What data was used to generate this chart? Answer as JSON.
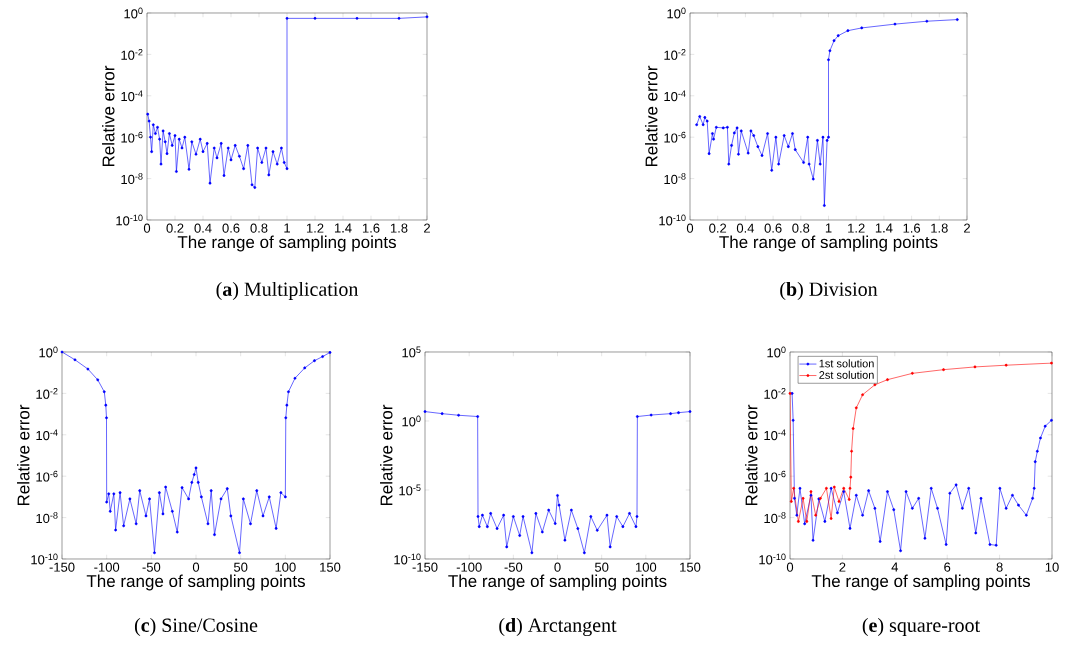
{
  "chart_data": [
    {
      "type": "line",
      "title": "(**a**) Multiplication",
      "xlabel": "The range of sampling points",
      "ylabel": "Relative error",
      "log": "y",
      "marker": "circle",
      "line_style": "solid",
      "grid": false,
      "xlim": [
        0,
        2
      ],
      "xticks": [
        0,
        0.2,
        0.4,
        0.6,
        0.8,
        1,
        1.2,
        1.4,
        1.6,
        1.8,
        2
      ],
      "ylim": [
        1e-10,
        1
      ],
      "yticks": [
        {
          "value": 1e-10,
          "label": "10$^{-10}$"
        },
        {
          "value": 1e-08,
          "label": "10$^{-8}$"
        },
        {
          "value": 1e-06,
          "label": "10$^{-6}$"
        },
        {
          "value": 0.0001,
          "label": "10$^{-4}$"
        },
        {
          "value": 0.01,
          "label": "10$^{-2}$"
        },
        {
          "value": 1,
          "label": "10$^{0}$"
        }
      ],
      "series": [
        {
          "color": "#0000ff",
          "x": [
            0.005,
            0.015,
            0.025,
            0.033,
            0.045,
            0.06,
            0.075,
            0.09,
            0.1,
            0.115,
            0.13,
            0.143,
            0.16,
            0.18,
            0.2,
            0.21,
            0.23,
            0.25,
            0.27,
            0.3,
            0.32,
            0.35,
            0.38,
            0.4,
            0.43,
            0.45,
            0.48,
            0.5,
            0.53,
            0.55,
            0.58,
            0.6,
            0.63,
            0.66,
            0.69,
            0.72,
            0.75,
            0.77,
            0.79,
            0.82,
            0.85,
            0.87,
            0.9,
            0.93,
            0.96,
            0.98,
            1.0,
            1.0,
            1.2,
            1.5,
            1.8,
            2.0
          ],
          "values": [
            1.3e-05,
            6e-06,
            1e-06,
            2e-07,
            4e-06,
            1.5e-06,
            3e-06,
            8e-07,
            5e-08,
            2e-06,
            6e-07,
            1.6e-07,
            1.5e-06,
            4e-07,
            1.2e-06,
            2.2e-08,
            8e-07,
            3e-07,
            1e-06,
            2.8e-08,
            6e-07,
            1.5e-07,
            8e-07,
            2e-07,
            5e-07,
            6e-09,
            3e-07,
            1e-07,
            5e-07,
            1.4e-08,
            3e-07,
            8e-08,
            4e-07,
            1.2e-07,
            3e-08,
            4e-07,
            5e-09,
            3.7e-09,
            3e-07,
            6e-08,
            3e-07,
            1.5e-08,
            2e-07,
            5e-08,
            3e-07,
            6e-08,
            3e-08,
            0.55,
            0.55,
            0.55,
            0.55,
            0.65
          ]
        }
      ]
    },
    {
      "type": "line",
      "title": "(**b**) Division",
      "xlabel": "The range of sampling points",
      "ylabel": "Relative error",
      "log": "y",
      "marker": "circle",
      "line_style": "solid",
      "grid": false,
      "xlim": [
        0,
        2
      ],
      "xticks": [
        0,
        0.2,
        0.4,
        0.6,
        0.8,
        1,
        1.2,
        1.4,
        1.6,
        1.8,
        2
      ],
      "ylim": [
        1e-10,
        1
      ],
      "yticks": [
        {
          "value": 1e-10,
          "label": "10$^{-10}$"
        },
        {
          "value": 1e-08,
          "label": "10$^{-8}$"
        },
        {
          "value": 1e-06,
          "label": "10$^{-6}$"
        },
        {
          "value": 0.0001,
          "label": "10$^{-4}$"
        },
        {
          "value": 0.01,
          "label": "10$^{-2}$"
        },
        {
          "value": 1,
          "label": "10$^{0}$"
        }
      ],
      "series": [
        {
          "color": "#0000ff",
          "x": [
            0.048,
            0.07,
            0.095,
            0.107,
            0.124,
            0.138,
            0.162,
            0.17,
            0.19,
            0.24,
            0.27,
            0.28,
            0.3,
            0.32,
            0.34,
            0.35,
            0.37,
            0.42,
            0.44,
            0.46,
            0.49,
            0.52,
            0.56,
            0.59,
            0.62,
            0.64,
            0.68,
            0.71,
            0.74,
            0.76,
            0.82,
            0.85,
            0.86,
            0.89,
            0.92,
            0.94,
            0.96,
            0.97,
            0.99,
            1.0,
            1.0,
            1.01,
            1.04,
            1.07,
            1.14,
            1.24,
            1.48,
            1.71,
            1.93
          ],
          "values": [
            4e-06,
            1e-05,
            4e-06,
            9e-06,
            6e-06,
            1.6e-07,
            1.5e-06,
            8e-07,
            3e-06,
            2.8e-06,
            3e-06,
            5e-08,
            4e-07,
            1.6e-06,
            2.8e-06,
            1.5e-07,
            2e-06,
            1.7e-07,
            2e-06,
            1.2e-06,
            3.5e-07,
            1.3e-07,
            1.5e-06,
            2.5e-08,
            1e-06,
            5e-08,
            1.2e-06,
            3.5e-07,
            1.5e-06,
            2.5e-07,
            6e-08,
            1e-06,
            5e-08,
            9.5e-09,
            7e-07,
            5e-08,
            1e-06,
            5e-10,
            7e-07,
            1e-06,
            0.0055,
            0.015,
            0.046,
            0.08,
            0.14,
            0.19,
            0.29,
            0.4,
            0.48
          ]
        }
      ]
    },
    {
      "type": "line",
      "title": "(**c**) Sine/Cosine",
      "xlabel": "The range of sampling points",
      "ylabel": "Relative error",
      "log": "y",
      "marker": "circle",
      "line_style": "solid",
      "grid": false,
      "xlim": [
        -150,
        150
      ],
      "xticks": [
        -150,
        -100,
        -50,
        0,
        50,
        100,
        150
      ],
      "ylim": [
        1e-10,
        1
      ],
      "yticks": [
        {
          "value": 1e-10,
          "label": "10$^{-10}$"
        },
        {
          "value": 1e-08,
          "label": "10$^{-8}$"
        },
        {
          "value": 1e-06,
          "label": "10$^{-6}$"
        },
        {
          "value": 0.0001,
          "label": "10$^{-4}$"
        },
        {
          "value": 0.01,
          "label": "10$^{-2}$"
        },
        {
          "value": 1,
          "label": "10$^{0}$"
        }
      ],
      "series": [
        {
          "color": "#0000ff",
          "x": [
            -150,
            -135.5,
            -121,
            -110,
            -102.7,
            -101,
            -100.2,
            -100,
            -97.7,
            -96,
            -92,
            -90,
            -85,
            -81,
            -74,
            -67,
            -63,
            -56,
            -52,
            -46.5,
            -41,
            -37,
            -34,
            -26.5,
            -21,
            -15.6,
            -8.3,
            -4.7,
            -2,
            0,
            2.5,
            6,
            13.4,
            17,
            20.7,
            28,
            35,
            39,
            48.7,
            53,
            61,
            68,
            75,
            82,
            89.7,
            95,
            100,
            100.5,
            101.7,
            103.5,
            110.8,
            121.7,
            132.6,
            141.7,
            150
          ],
          "values": [
            1,
            0.42,
            0.15,
            0.045,
            0.012,
            0.0027,
            0.00066,
            5.6e-08,
            1.4e-07,
            2e-08,
            1.4e-07,
            2.5e-09,
            1.6e-07,
            4e-09,
            8e-08,
            5e-09,
            2e-07,
            1.2e-08,
            8e-08,
            2e-10,
            1.6e-07,
            1.5e-08,
            3e-07,
            2e-08,
            2e-09,
            2.8e-07,
            8e-08,
            5e-07,
            1.2e-06,
            2.5e-06,
            5e-07,
            1e-07,
            5e-09,
            2e-07,
            1.5e-09,
            8e-08,
            2.5e-07,
            1.2e-08,
            2e-10,
            8e-08,
            5e-09,
            2e-07,
            1.2e-08,
            1e-07,
            3e-09,
            1.6e-07,
            1e-07,
            0.00066,
            0.0027,
            0.012,
            0.054,
            0.17,
            0.38,
            0.6,
            0.95
          ]
        }
      ]
    },
    {
      "type": "line",
      "title": "(**d**) Arctangent",
      "xlabel": "The range of sampling points",
      "ylabel": "Relative error",
      "log": "y",
      "marker": "circle",
      "line_style": "solid",
      "grid": false,
      "xlim": [
        -150,
        150
      ],
      "xticks": [
        -150,
        -100,
        -50,
        0,
        50,
        100,
        150
      ],
      "ylim": [
        1e-10,
        100000.0
      ],
      "yticks": [
        {
          "value": 1e-10,
          "label": "10$^{-10}$"
        },
        {
          "value": 1e-05,
          "label": "10$^{-5}$"
        },
        {
          "value": 1,
          "label": "10$^{0}$"
        },
        {
          "value": 100000.0,
          "label": "10$^{5}$"
        }
      ],
      "series": [
        {
          "color": "#0000ff",
          "x": [
            -150,
            -130.6,
            -112,
            -90.4,
            -90,
            -88.6,
            -85,
            -79.4,
            -75.7,
            -68.4,
            -61,
            -57.5,
            -50,
            -42.8,
            -39,
            -29,
            -24.5,
            -17.2,
            -10,
            -2.6,
            0,
            1.8,
            8.4,
            15.7,
            23,
            30.4,
            37.7,
            45,
            56,
            59.6,
            67,
            74,
            81.5,
            88.8,
            90,
            90.4,
            106,
            128,
            137,
            150
          ],
          "values": [
            4.8,
            3.4,
            2.6,
            2.1,
            1.2e-07,
            2.2e-08,
            1.5e-07,
            2.2e-08,
            2e-07,
            1.6e-08,
            1.5e-07,
            7.5e-10,
            1.2e-07,
            5e-09,
            1.2e-07,
            2.8e-10,
            2e-07,
            9e-09,
            3.5e-07,
            3.7e-08,
            4e-06,
            8e-07,
            2.3e-09,
            3.5e-07,
            1.6e-08,
            2.8e-10,
            1.2e-07,
            1.2e-08,
            1.5e-07,
            7.5e-10,
            1.2e-07,
            2.2e-08,
            2e-07,
            2.2e-08,
            1.2e-07,
            2.1,
            2.7,
            3.4,
            4,
            4.8
          ]
        }
      ]
    },
    {
      "type": "line",
      "title": "(**e**) square-root",
      "xlabel": "The range of sampling points",
      "ylabel": "Relative error",
      "log": "y",
      "marker": "circle",
      "line_style": "solid",
      "grid": false,
      "legend": "top left",
      "xlim": [
        0,
        10
      ],
      "xticks": [
        0,
        2,
        4,
        6,
        8,
        10
      ],
      "ylim": [
        1e-10,
        1
      ],
      "yticks": [
        {
          "value": 1e-10,
          "label": "10$^{-10}$"
        },
        {
          "value": 1e-08,
          "label": "10$^{-8}$"
        },
        {
          "value": 1e-06,
          "label": "10$^{-6}$"
        },
        {
          "value": 0.0001,
          "label": "10$^{-4}$"
        },
        {
          "value": 0.01,
          "label": "10$^{-2}$"
        },
        {
          "value": 1,
          "label": "10$^{0}$"
        }
      ],
      "series": [
        {
          "name": "1st solution",
          "color": "#0000ff",
          "x": [
            0.08,
            0.12,
            0.17,
            0.26,
            0.38,
            0.56,
            0.8,
            0.88,
            1.1,
            1.33,
            1.57,
            1.81,
            2.05,
            2.29,
            2.53,
            2.77,
            3.0,
            3.24,
            3.44,
            3.72,
            3.96,
            4.22,
            4.43,
            4.67,
            4.91,
            5.15,
            5.39,
            5.63,
            5.96,
            6.1,
            6.34,
            6.58,
            6.82,
            7.09,
            7.29,
            7.63,
            7.87,
            8.01,
            8.25,
            8.49,
            8.72,
            9.02,
            9.26,
            9.32,
            9.36,
            9.44,
            9.56,
            9.74,
            9.98
          ],
          "values": [
            0.01,
            0.0005,
            8.5e-08,
            1.3e-08,
            2.6e-07,
            5e-09,
            1.2e-07,
            8e-10,
            8e-08,
            6.5e-09,
            2.6e-07,
            1.7e-08,
            1.8e-07,
            3e-09,
            1.2e-07,
            1.3e-08,
            2e-07,
            2.8e-08,
            7e-10,
            1.8e-07,
            2.4e-08,
            2.5e-10,
            1.8e-07,
            2.8e-08,
            8.5e-08,
            1e-09,
            2.6e-07,
            2.8e-08,
            5e-10,
            1.5e-07,
            3.8e-07,
            2.8e-08,
            2.6e-07,
            1.8e-09,
            8.5e-08,
            5e-10,
            4.6e-10,
            2.6e-07,
            2.8e-08,
            1.2e-07,
            4e-08,
            1.3e-08,
            8.5e-08,
            2.6e-07,
            5e-06,
            1.6e-05,
            7e-05,
            0.00026,
            0.0005
          ]
        },
        {
          "name": "2st solution",
          "color": "#ff0000",
          "x": [
            0,
            0.05,
            0.14,
            0.32,
            0.5,
            0.64,
            0.8,
            0.98,
            1.16,
            1.39,
            1.57,
            1.69,
            1.87,
            2.05,
            2.26,
            2.29,
            2.32,
            2.35,
            2.41,
            2.53,
            2.77,
            3.24,
            3.72,
            4.67,
            5.86,
            7.06,
            8.25,
            9.98
          ],
          "values": [
            0.01,
            6e-08,
            2.6e-07,
            6.5e-09,
            8.5e-08,
            6.5e-09,
            1.8e-07,
            1.3e-08,
            8.5e-08,
            2.6e-07,
            9e-09,
            3e-07,
            6e-08,
            2.6e-07,
            7.5e-08,
            2.6e-07,
            9e-07,
            1.6e-05,
            0.0002,
            0.002,
            0.0086,
            0.026,
            0.046,
            0.093,
            0.14,
            0.19,
            0.23,
            0.29
          ]
        }
      ]
    }
  ]
}
